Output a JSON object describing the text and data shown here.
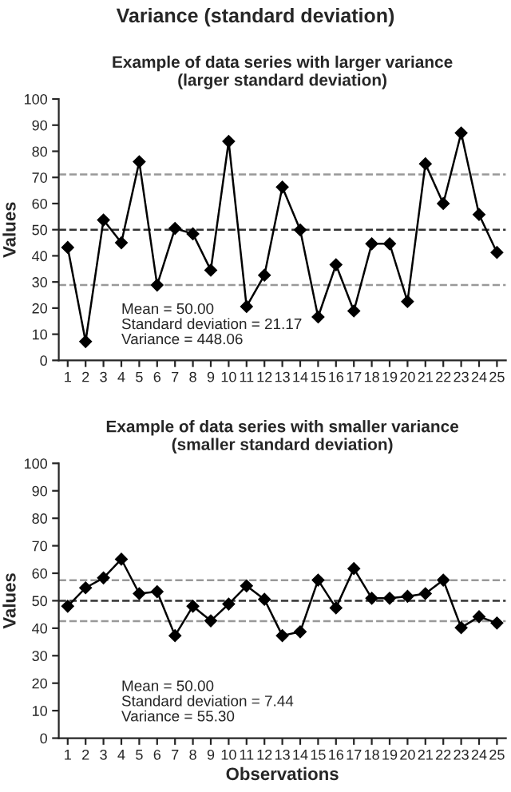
{
  "chart_data": [
    {
      "type": "line",
      "title": "Variance (standard deviation)",
      "subtitle": "Example of data series with larger variance\n(larger standard deviation)",
      "ylabel": "Values",
      "categories": [
        "1",
        "2",
        "3",
        "4",
        "5",
        "6",
        "7",
        "8",
        "9",
        "10",
        "11",
        "12",
        "13",
        "14",
        "15",
        "16",
        "17",
        "18",
        "19",
        "20",
        "21",
        "22",
        "23",
        "24",
        "25"
      ],
      "series": [
        {
          "color": "#000000",
          "values": [
            43.2,
            7.2,
            53.7,
            45,
            76,
            28.8,
            50.5,
            48.4,
            34.5,
            83.8,
            20.6,
            32.6,
            66.3,
            49.9,
            16.6,
            36.6,
            18.9,
            44.6,
            44.6,
            22.5,
            75.2,
            60,
            87,
            55.8,
            41.3
          ]
        }
      ],
      "ylim": [
        0,
        100
      ],
      "yticks": [
        0,
        10,
        20,
        30,
        40,
        50,
        60,
        70,
        80,
        90,
        100
      ],
      "ref_lines": [
        {
          "axis": "y",
          "value": 50,
          "color": "#333333",
          "line_style": "dashed"
        },
        {
          "axis": "y",
          "value": 71.17,
          "color": "#999999",
          "line_style": "dashed"
        },
        {
          "axis": "y",
          "value": 28.83,
          "color": "#999999",
          "line_style": "dashed"
        }
      ],
      "annotations": [
        "Mean = 50.00\nStandard deviation = 21.17\nVariance = 448.06"
      ],
      "marker": "diamond",
      "line_style": "solid",
      "grid": false,
      "legend": false
    },
    {
      "type": "line",
      "title": "Example of data series with smaller variance\n(smaller standard deviation)",
      "xlabel": "Observations",
      "ylabel": "Values",
      "categories": [
        "1",
        "2",
        "3",
        "4",
        "5",
        "6",
        "7",
        "8",
        "9",
        "10",
        "11",
        "12",
        "13",
        "14",
        "15",
        "16",
        "17",
        "18",
        "19",
        "20",
        "21",
        "22",
        "23",
        "24",
        "25"
      ],
      "series": [
        {
          "color": "#000000",
          "values": [
            48,
            54.7,
            58.3,
            65.1,
            52.6,
            53.3,
            37.3,
            48,
            42.7,
            48.8,
            55.4,
            50.5,
            37.3,
            38.7,
            57.5,
            47.4,
            61.7,
            50.9,
            50.9,
            51.6,
            52.6,
            57.5,
            40.2,
            44.2,
            41.9
          ]
        }
      ],
      "ylim": [
        0,
        100
      ],
      "yticks": [
        0,
        10,
        20,
        30,
        40,
        50,
        60,
        70,
        80,
        90,
        100
      ],
      "ref_lines": [
        {
          "axis": "y",
          "value": 50,
          "color": "#333333",
          "line_style": "dashed"
        },
        {
          "axis": "y",
          "value": 57.44,
          "color": "#999999",
          "line_style": "dashed"
        },
        {
          "axis": "y",
          "value": 42.56,
          "color": "#999999",
          "line_style": "dashed"
        }
      ],
      "annotations": [
        "Mean = 50.00\nStandard deviation = 7.44\nVariance = 55.30"
      ],
      "marker": "diamond",
      "line_style": "solid",
      "grid": false,
      "legend": false
    }
  ]
}
